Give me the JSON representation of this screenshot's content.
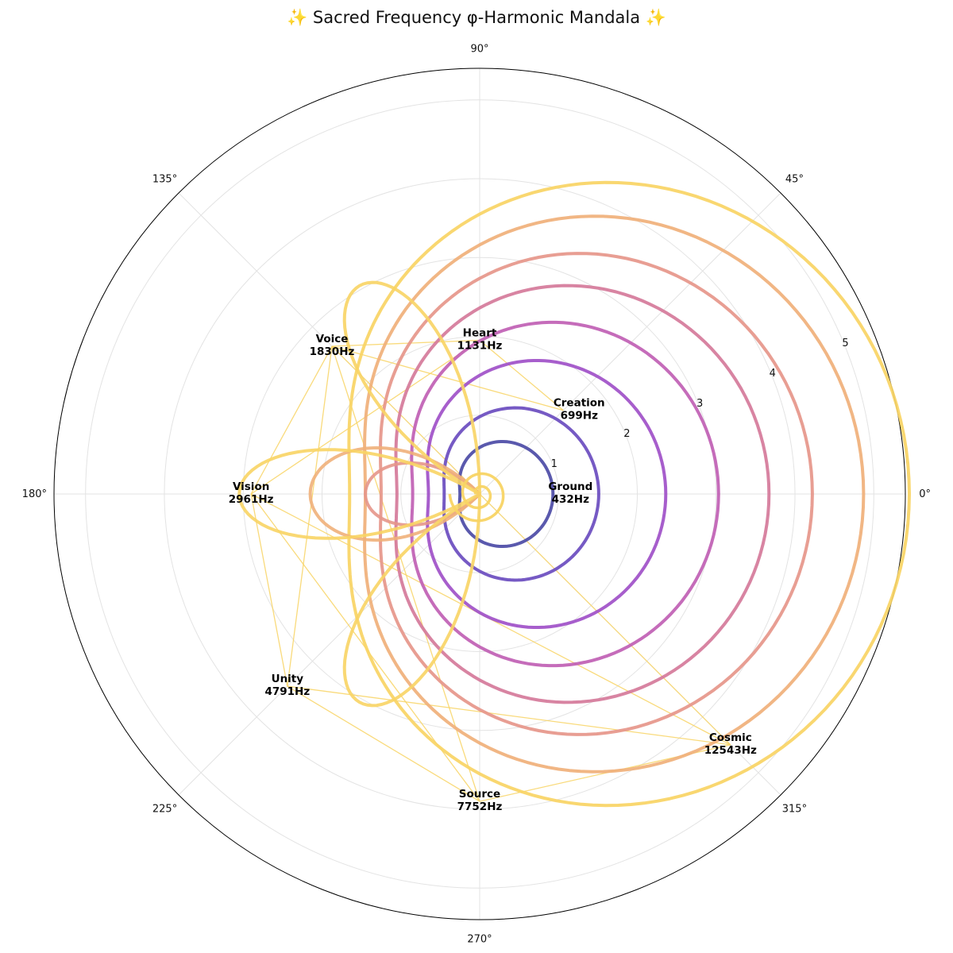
{
  "chart_data": {
    "type": "polar-line",
    "title": "✨ Sacred Frequency φ-Harmonic Mandala ✨",
    "angle_ticks": [
      "0°",
      "45°",
      "90°",
      "135°",
      "180°",
      "225°",
      "270°",
      "315°"
    ],
    "radial_ticks": [
      "1",
      "2",
      "3",
      "4",
      "5"
    ],
    "rlim": [
      0,
      5.4
    ],
    "grid": true,
    "colors": [
      "#4c4ba6",
      "#6a4cbf",
      "#a050c8",
      "#c060b4",
      "#d5799a",
      "#e6968a",
      "#f0b07a",
      "#f8d464"
    ],
    "curves": [
      {
        "a": 0.25,
        "b": 0.68
      },
      {
        "a": 0.45,
        "b": 1.06
      },
      {
        "a": 0.65,
        "b": 1.71
      },
      {
        "a": 0.85,
        "b": 2.18
      },
      {
        "a": 1.05,
        "b": 2.62
      },
      {
        "a": 1.25,
        "b": 2.97
      },
      {
        "a": 1.45,
        "b": 3.42
      },
      {
        "a": 1.65,
        "b": 3.8
      }
    ],
    "lobes": [
      {
        "k": 2,
        "scale": 1.45
      },
      {
        "k": 2,
        "scale": 2.15
      },
      {
        "k": 3,
        "scale": 3.05
      }
    ],
    "spiral": {
      "amp": 0.33,
      "turns": 2
    },
    "nodes": [
      {
        "name": "Ground",
        "freq": "432Hz",
        "angle": 0,
        "r": 0.95
      },
      {
        "name": "Creation",
        "freq": "699Hz",
        "angle": 45,
        "r": 1.5
      },
      {
        "name": "Heart",
        "freq": "1131Hz",
        "angle": 90,
        "r": 1.95
      },
      {
        "name": "Voice",
        "freq": "1830Hz",
        "angle": 135,
        "r": 2.65
      },
      {
        "name": "Vision",
        "freq": "2961Hz",
        "angle": 180,
        "r": 2.9
      },
      {
        "name": "Unity",
        "freq": "4791Hz",
        "angle": 225,
        "r": 3.45
      },
      {
        "name": "Source",
        "freq": "7752Hz",
        "angle": 270,
        "r": 3.9
      },
      {
        "name": "Cosmic",
        "freq": "12543Hz",
        "angle": 315,
        "r": 4.5
      }
    ],
    "links": [
      [
        1,
        2
      ],
      [
        1,
        3
      ],
      [
        2,
        3
      ],
      [
        2,
        4
      ],
      [
        3,
        4
      ],
      [
        3,
        5
      ],
      [
        3,
        6
      ],
      [
        3,
        7
      ],
      [
        4,
        5
      ],
      [
        4,
        6
      ],
      [
        4,
        7
      ],
      [
        5,
        6
      ],
      [
        5,
        7
      ],
      [
        6,
        7
      ]
    ]
  }
}
